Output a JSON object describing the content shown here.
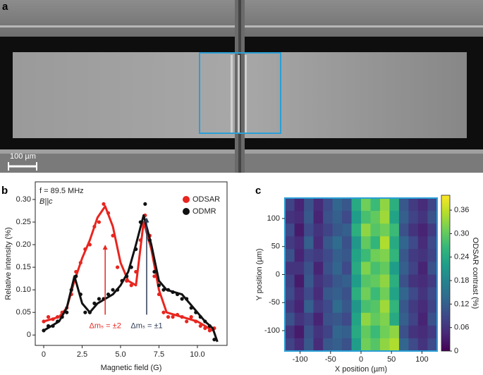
{
  "chart_data": [
    {
      "type": "image",
      "label": "a",
      "scale_bar": "100 µm"
    },
    {
      "type": "line",
      "label": "b",
      "xlabel": "Magnetic field (G)",
      "ylabel": "Relative intensity (%)",
      "xlim": [
        -0.55,
        11.93
      ],
      "ylim": [
        -0.023,
        0.339
      ],
      "xticks": [
        0,
        2.5,
        {
          "value": 5,
          "label": "5.0"
        },
        7.5,
        {
          "value": 10,
          "label": "10.0"
        }
      ],
      "yticks": [
        0,
        0.05,
        {
          "value": 0.1,
          "label": "0.10"
        },
        0.15,
        {
          "value": 0.2,
          "label": "0.20"
        },
        0.25,
        {
          "value": 0.3,
          "label": "0.30"
        }
      ],
      "notes": [
        "f = 89.5 MHz",
        "B||c"
      ],
      "annotations": [
        {
          "text": "Δmₛ = ±2",
          "x": 4.0,
          "y": 0.2,
          "color": "#e8251f"
        },
        {
          "text": "Δmₛ = ±1",
          "x": 6.7,
          "y": 0.26,
          "color": "#2b3a55"
        }
      ],
      "legend": "upper right",
      "series": [
        {
          "name": "ODSAR",
          "color": "#e8251f",
          "x": [
            0,
            0.3,
            0.6,
            0.9,
            1.2,
            1.5,
            1.8,
            2.1,
            2.4,
            2.7,
            3.0,
            3.3,
            3.6,
            3.9,
            4.2,
            4.5,
            4.8,
            5.1,
            5.4,
            5.7,
            6.0,
            6.3,
            6.6,
            6.9,
            7.2,
            7.5,
            7.8,
            8.1,
            8.4,
            8.7,
            9.0,
            9.3,
            9.6,
            9.9,
            10.2,
            10.5,
            10.8,
            11.1
          ],
          "values": [
            0.03,
            0.04,
            0.035,
            0.04,
            0.05,
            0.06,
            0.09,
            0.14,
            0.16,
            0.19,
            0.2,
            0.24,
            0.25,
            0.29,
            0.27,
            0.22,
            0.15,
            0.12,
            0.12,
            0.11,
            0.14,
            0.21,
            0.265,
            0.22,
            0.13,
            0.09,
            0.05,
            0.04,
            0.04,
            0.045,
            0.04,
            0.03,
            0.04,
            0.03,
            0.02,
            0.015,
            0.01,
            0.015
          ],
          "fit_x": [
            0,
            0.5,
            1,
            1.5,
            2,
            2.5,
            3,
            3.5,
            4,
            4.5,
            5,
            5.5,
            6,
            6.5,
            7,
            7.5,
            8,
            8.5,
            9,
            9.5,
            10,
            10.5,
            11
          ],
          "fit": [
            0.03,
            0.035,
            0.04,
            0.06,
            0.12,
            0.17,
            0.21,
            0.26,
            0.285,
            0.24,
            0.16,
            0.12,
            0.11,
            0.25,
            0.19,
            0.1,
            0.05,
            0.045,
            0.04,
            0.035,
            0.03,
            0.02,
            0.01
          ]
        },
        {
          "name": "ODMR",
          "color": "#111111",
          "x": [
            0,
            0.3,
            0.6,
            0.9,
            1.2,
            1.5,
            1.8,
            2.1,
            2.4,
            2.7,
            3.0,
            3.3,
            3.6,
            3.9,
            4.2,
            4.5,
            4.8,
            5.1,
            5.4,
            5.7,
            6.0,
            6.3,
            6.6,
            6.9,
            7.2,
            7.5,
            7.8,
            8.1,
            8.4,
            8.7,
            9.0,
            9.3,
            9.6,
            9.9,
            10.2,
            10.5,
            10.8,
            11.1
          ],
          "values": [
            0.01,
            0.02,
            0.02,
            0.03,
            0.04,
            0.05,
            0.1,
            0.13,
            0.09,
            0.05,
            0.05,
            0.07,
            0.08,
            0.08,
            0.09,
            0.1,
            0.1,
            0.12,
            0.13,
            0.15,
            0.19,
            0.25,
            0.29,
            0.21,
            0.14,
            0.11,
            0.1,
            0.1,
            0.095,
            0.09,
            0.08,
            0.08,
            0.06,
            0.05,
            0.04,
            0.03,
            0.02,
            -0.01
          ],
          "fit_x": [
            0,
            0.5,
            1,
            1.5,
            2,
            2.5,
            3,
            3.5,
            4,
            4.5,
            5,
            5.5,
            6,
            6.5,
            7,
            7.5,
            8,
            8.5,
            9,
            9.5,
            10,
            10.5,
            11,
            11.3
          ],
          "fit": [
            0.01,
            0.02,
            0.03,
            0.06,
            0.13,
            0.07,
            0.05,
            0.07,
            0.08,
            0.09,
            0.11,
            0.14,
            0.2,
            0.265,
            0.2,
            0.12,
            0.1,
            0.095,
            0.09,
            0.07,
            0.05,
            0.03,
            0.015,
            -0.015
          ]
        }
      ]
    },
    {
      "type": "heatmap",
      "label": "c",
      "xlabel": "X position (µm)",
      "ylabel": "Y position (µm)",
      "colorbar_label": "ODSAR contrast (%)",
      "colormap": "viridis",
      "frame_color": "#2a9fd6",
      "xlim": [
        -125,
        125
      ],
      "ylim": [
        -136.4,
        136.4
      ],
      "clim": [
        0,
        0.398
      ],
      "xticks": [
        -100,
        -50,
        0,
        50,
        100
      ],
      "yticks": [
        -100,
        -50,
        0,
        50,
        100
      ],
      "cticks": [
        0,
        0.06,
        0.12,
        0.18,
        0.24,
        {
          "value": 0.3,
          "label": "0.30"
        },
        0.36
      ],
      "x": [
        -117,
        -101.4,
        -85.8,
        -70.2,
        -54.6,
        -39,
        -23.4,
        -7.8,
        7.8,
        23.4,
        39,
        54.6,
        70.2,
        85.8,
        101.4,
        117
      ],
      "y": [
        125,
        102.3,
        79.5,
        56.8,
        34.1,
        11.4,
        -11.4,
        -34.1,
        -56.8,
        -79.5,
        -102.3,
        -125
      ],
      "z": [
        [
          0.08,
          0.04,
          0.1,
          0.05,
          0.09,
          0.13,
          0.11,
          0.24,
          0.31,
          0.27,
          0.33,
          0.25,
          0.11,
          0.07,
          0.05,
          0.08
        ],
        [
          0.06,
          0.05,
          0.11,
          0.04,
          0.1,
          0.12,
          0.09,
          0.22,
          0.28,
          0.3,
          0.34,
          0.23,
          0.12,
          0.08,
          0.06,
          0.1
        ],
        [
          0.09,
          0.03,
          0.09,
          0.06,
          0.08,
          0.11,
          0.12,
          0.25,
          0.33,
          0.29,
          0.31,
          0.27,
          0.1,
          0.06,
          0.04,
          0.07
        ],
        [
          0.07,
          0.05,
          0.12,
          0.05,
          0.11,
          0.14,
          0.1,
          0.21,
          0.3,
          0.26,
          0.35,
          0.24,
          0.13,
          0.09,
          0.05,
          0.09
        ],
        [
          0.1,
          0.04,
          0.08,
          0.07,
          0.09,
          0.12,
          0.11,
          0.23,
          0.27,
          0.31,
          0.32,
          0.26,
          0.11,
          0.07,
          0.06,
          0.08
        ],
        [
          0.06,
          0.06,
          0.1,
          0.04,
          0.1,
          0.13,
          0.09,
          0.24,
          0.32,
          0.28,
          0.3,
          0.22,
          0.12,
          0.08,
          0.04,
          0.1
        ],
        [
          0.08,
          0.03,
          0.11,
          0.06,
          0.08,
          0.11,
          0.12,
          0.22,
          0.29,
          0.3,
          0.33,
          0.25,
          0.1,
          0.06,
          0.05,
          0.07
        ],
        [
          0.09,
          0.05,
          0.09,
          0.05,
          0.11,
          0.12,
          0.1,
          0.25,
          0.31,
          0.27,
          0.31,
          0.23,
          0.13,
          0.09,
          0.06,
          0.09
        ],
        [
          0.07,
          0.04,
          0.12,
          0.07,
          0.09,
          0.14,
          0.11,
          0.21,
          0.28,
          0.29,
          0.34,
          0.26,
          0.11,
          0.07,
          0.05,
          0.08
        ],
        [
          0.1,
          0.06,
          0.08,
          0.04,
          0.1,
          0.11,
          0.09,
          0.23,
          0.33,
          0.3,
          0.32,
          0.24,
          0.12,
          0.08,
          0.04,
          0.1
        ],
        [
          0.06,
          0.03,
          0.1,
          0.06,
          0.08,
          0.13,
          0.12,
          0.24,
          0.3,
          0.27,
          0.31,
          0.33,
          0.1,
          0.06,
          0.05,
          0.07
        ],
        [
          0.08,
          0.05,
          0.11,
          0.05,
          0.11,
          0.12,
          0.1,
          0.22,
          0.31,
          0.29,
          0.33,
          0.35,
          0.13,
          0.09,
          0.06,
          0.09
        ]
      ]
    }
  ]
}
